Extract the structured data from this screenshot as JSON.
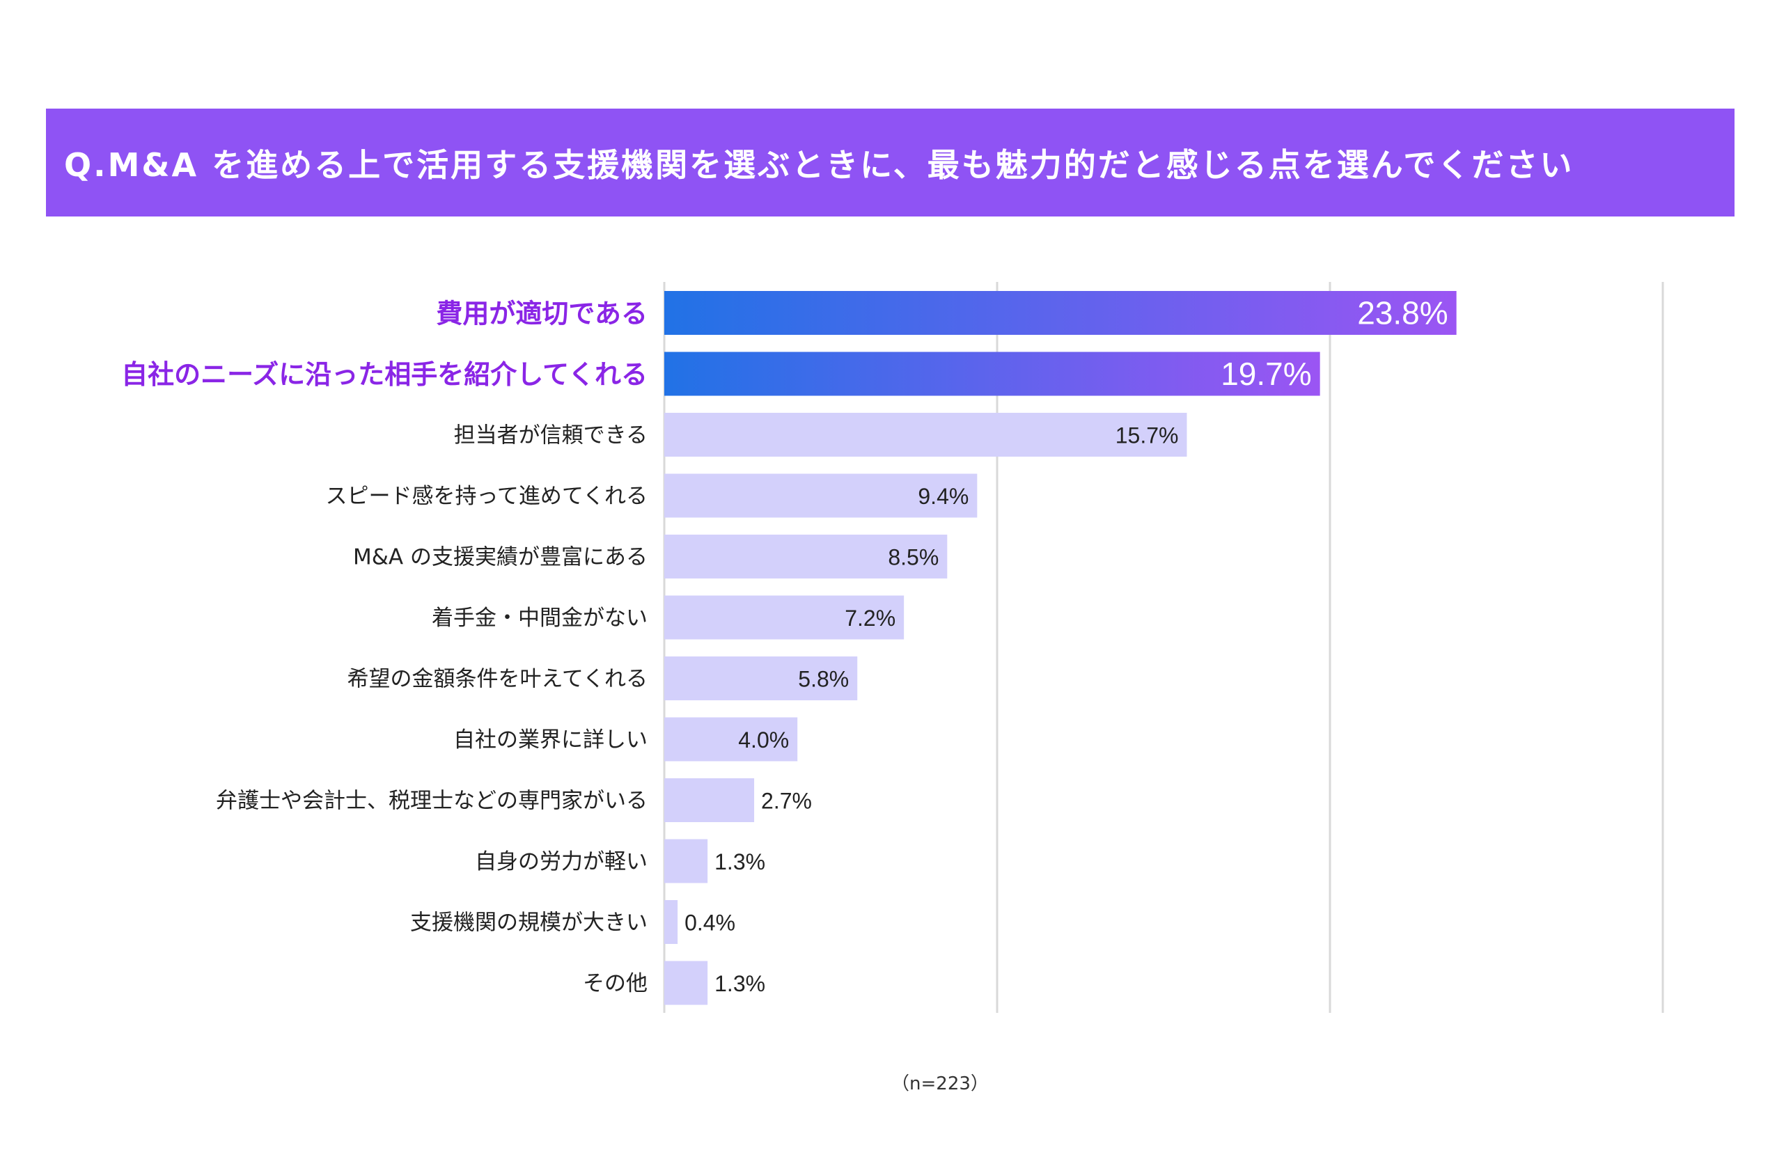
{
  "question": "Q.M&A を進める上で活用する支援機関を選ぶときに、最も魅力的だと感じる点を選んでください",
  "note": "（n=223）",
  "colors": {
    "banner": "#8f53f4",
    "highlight_label": "#8a25e6",
    "gradient_start": "#2172e6",
    "gradient_end": "#9b55f3",
    "bar_light": "#d3d0fb",
    "grid": "#d9d9d9"
  },
  "chart_data": {
    "type": "bar",
    "orientation": "horizontal",
    "unit": "%",
    "xlim": [
      0,
      30
    ],
    "grid": true,
    "categories": [
      "費用が適切である",
      "自社のニーズに沿った相手を紹介してくれる",
      "担当者が信頼できる",
      "スピード感を持って進めてくれる",
      "M&A の支援実績が豊富にある",
      "着手金・中間金がない",
      "希望の金額条件を叶えてくれる",
      "自社の業界に詳しい",
      "弁護士や会計士、税理士などの専門家がいる",
      "自身の労力が軽い",
      "支援機関の規模が大きい",
      "その他"
    ],
    "values": [
      23.8,
      19.7,
      15.7,
      9.4,
      8.5,
      7.2,
      5.8,
      4.0,
      2.7,
      1.3,
      0.4,
      1.3
    ],
    "labels": [
      "23.8%",
      "19.7%",
      "15.7%",
      "9.4%",
      "8.5%",
      "7.2%",
      "5.8%",
      "4.0%",
      "2.7%",
      "1.3%",
      "0.4%",
      "1.3%"
    ],
    "highlight_count": 2
  }
}
